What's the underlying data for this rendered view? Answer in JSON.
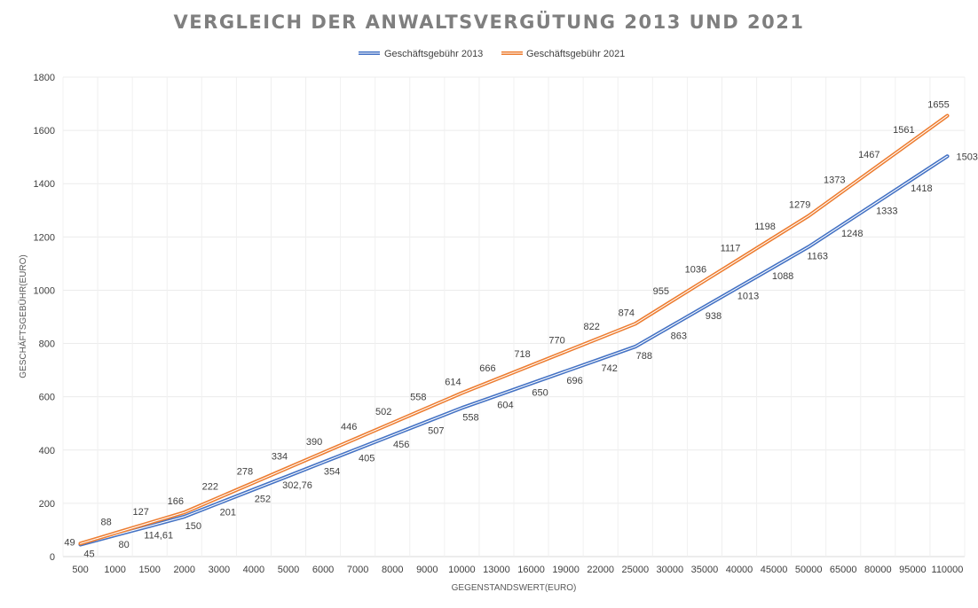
{
  "chart_data": {
    "type": "line",
    "title": "VERGLEICH DER ANWALTSVERGÜTUNG 2013 UND 2021",
    "xlabel": "GEGENSTANDSWERT(EURO)",
    "ylabel": "GESCHÄFTSGEBÜHR(EURO)",
    "ylim": [
      0,
      1800
    ],
    "yticks": [
      "0",
      "200",
      "400",
      "600",
      "800",
      "1000",
      "1200",
      "1400",
      "1600",
      "1800"
    ],
    "grid": true,
    "legend_position": "top",
    "categories": [
      "500",
      "1000",
      "1500",
      "2000",
      "3000",
      "4000",
      "5000",
      "6000",
      "7000",
      "8000",
      "9000",
      "10000",
      "13000",
      "16000",
      "19000",
      "22000",
      "25000",
      "30000",
      "35000",
      "40000",
      "45000",
      "50000",
      "65000",
      "80000",
      "95000",
      "110000"
    ],
    "series": [
      {
        "name": "Geschäftsgebühr 2013",
        "color": "#4472c4",
        "values": [
          45,
          80,
          114.61,
          150,
          201,
          252,
          302.76,
          354,
          405,
          456,
          507,
          558,
          604,
          650,
          696,
          742,
          788,
          863,
          938,
          1013,
          1088,
          1163,
          1248,
          1333,
          1418,
          1503
        ],
        "labels": [
          "45",
          "80",
          "114,61",
          "150",
          "201",
          "252",
          "302,76",
          "354",
          "405",
          "456",
          "507",
          "558",
          "604",
          "650",
          "696",
          "742",
          "788",
          "863",
          "938",
          "1013",
          "1088",
          "1163",
          "1248",
          "1333",
          "1418",
          "1503"
        ]
      },
      {
        "name": "Geschäftsgebühr 2021",
        "color": "#ed7d31",
        "values": [
          49,
          88,
          127,
          166,
          222,
          278,
          334,
          390,
          446,
          502,
          558,
          614,
          666,
          718,
          770,
          822,
          874,
          955,
          1036,
          1117,
          1198,
          1279,
          1373,
          1467,
          1561,
          1655
        ],
        "labels": [
          "49",
          "88",
          "127",
          "166",
          "222",
          "278",
          "334",
          "390",
          "446",
          "502",
          "558",
          "614",
          "666",
          "718",
          "770",
          "822",
          "874",
          "955",
          "1036",
          "1117",
          "1198",
          "1279",
          "1373",
          "1467",
          "1561",
          "1655"
        ]
      }
    ]
  }
}
